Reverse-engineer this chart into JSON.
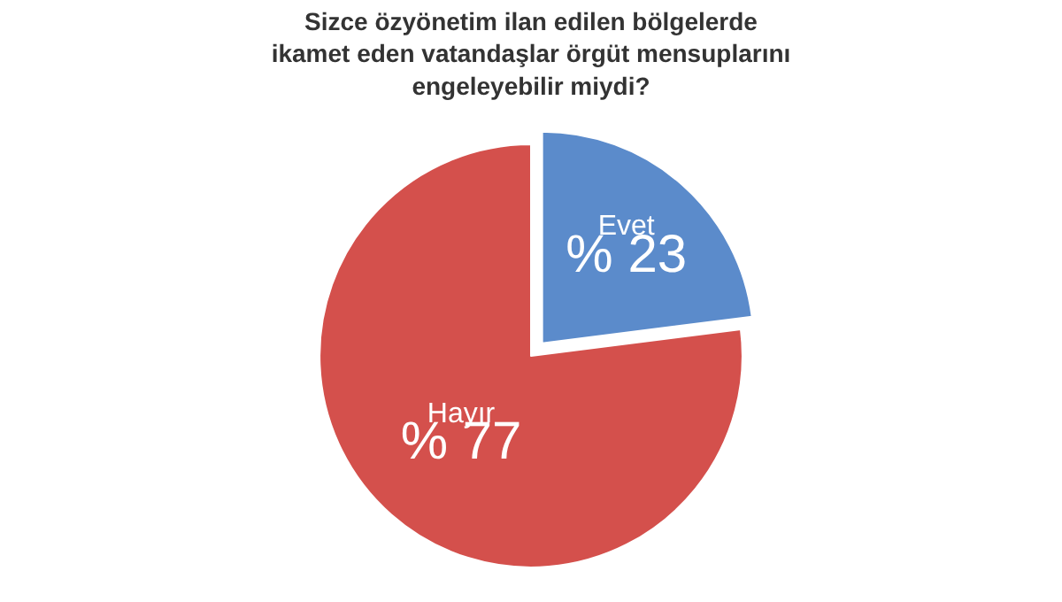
{
  "chart_data": {
    "type": "pie",
    "title": "Sizce özyönetim ilan edilen bölgelerde\nikamet eden vatandaşlar örgüt mensuplarını\nengeleyebilir miydi?",
    "categories": [
      "Evet",
      "Hayır"
    ],
    "values": [
      23,
      77
    ],
    "value_labels": [
      "% 23",
      "% 77"
    ],
    "colors": [
      "#5b8bcb",
      "#d4504c"
    ],
    "legend": false
  }
}
